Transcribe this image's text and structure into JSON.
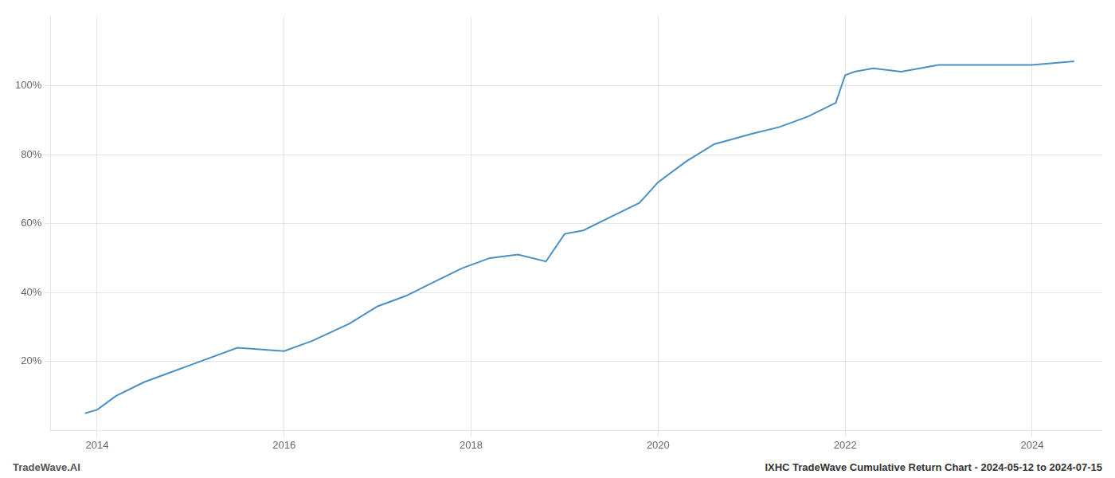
{
  "chart_data": {
    "type": "line",
    "annotations": [
      "TradeWave.AI",
      "IXHC TradeWave Cumulative Return Chart - 2024-05-12 to 2024-07-15"
    ],
    "x": [
      2013.87,
      2014.0,
      2014.2,
      2014.5,
      2014.8,
      2015.0,
      2015.5,
      2016.0,
      2016.3,
      2016.7,
      2017.0,
      2017.3,
      2017.6,
      2017.9,
      2018.2,
      2018.5,
      2018.8,
      2019.0,
      2019.2,
      2019.5,
      2019.8,
      2020.0,
      2020.3,
      2020.6,
      2021.0,
      2021.3,
      2021.6,
      2021.9,
      2022.0,
      2022.1,
      2022.3,
      2022.6,
      2023.0,
      2023.3,
      2023.6,
      2024.0,
      2024.45
    ],
    "values": [
      5,
      6,
      10,
      14,
      17,
      19,
      24,
      23,
      26,
      31,
      36,
      39,
      43,
      47,
      50,
      51,
      49,
      57,
      58,
      62,
      66,
      72,
      78,
      83,
      86,
      88,
      91,
      95,
      103,
      104,
      105,
      104,
      106,
      106,
      106,
      106,
      107
    ],
    "color": "#4a90c4",
    "xlim": [
      2013.5,
      2024.75
    ],
    "xticks": [
      2014,
      2016,
      2018,
      2020,
      2022,
      2024
    ],
    "ylim": [
      0,
      120
    ],
    "yticks": [
      {
        "value": 20,
        "label": "20%"
      },
      {
        "value": 40,
        "label": "40%"
      },
      {
        "value": 60,
        "label": "60%"
      },
      {
        "value": 80,
        "label": "80%"
      },
      {
        "value": 100,
        "label": "100%"
      }
    ],
    "grid": true
  }
}
